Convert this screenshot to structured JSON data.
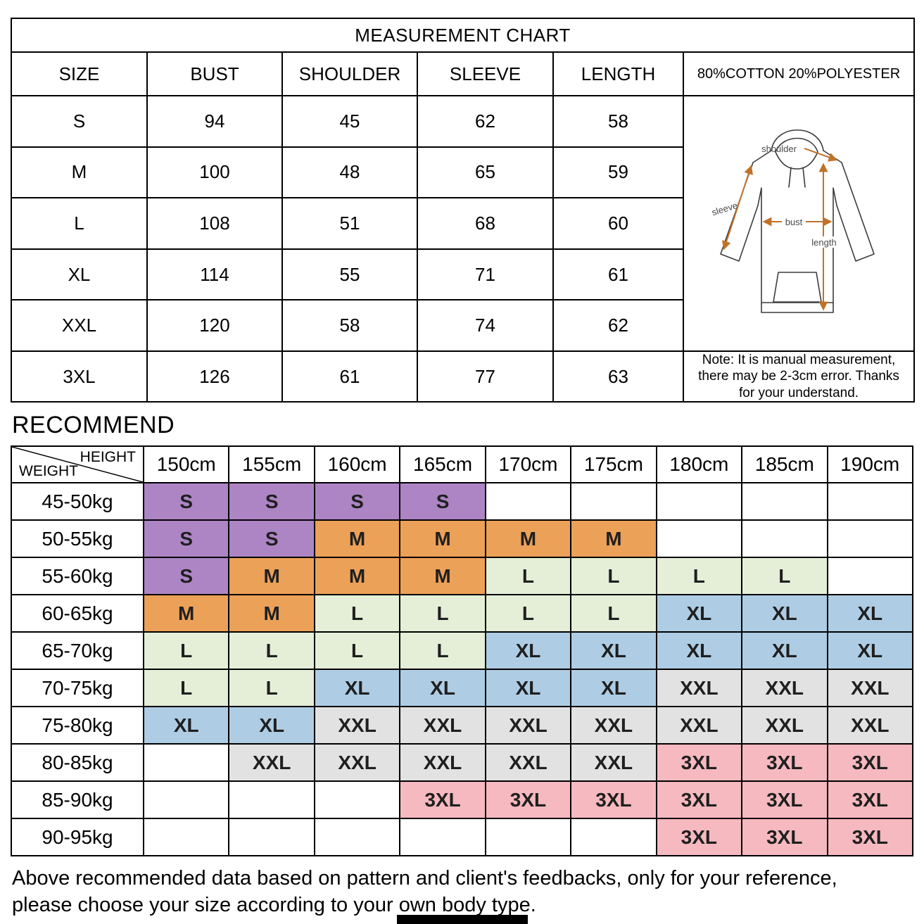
{
  "measurement_chart": {
    "title": "MEASUREMENT CHART",
    "columns": [
      "SIZE",
      "BUST",
      "SHOULDER",
      "SLEEVE",
      "LENGTH"
    ],
    "material": "80%COTTON 20%POLYESTER",
    "rows": [
      {
        "size": "S",
        "bust": "94",
        "shoulder": "45",
        "sleeve": "62",
        "length": "58"
      },
      {
        "size": "M",
        "bust": "100",
        "shoulder": "48",
        "sleeve": "65",
        "length": "59"
      },
      {
        "size": "L",
        "bust": "108",
        "shoulder": "51",
        "sleeve": "68",
        "length": "60"
      },
      {
        "size": "XL",
        "bust": "114",
        "shoulder": "55",
        "sleeve": "71",
        "length": "61"
      },
      {
        "size": "XXL",
        "bust": "120",
        "shoulder": "58",
        "sleeve": "74",
        "length": "62"
      },
      {
        "size": "3XL",
        "bust": "126",
        "shoulder": "61",
        "sleeve": "77",
        "length": "63"
      }
    ],
    "diagram_labels": {
      "shoulder": "shoulder",
      "sleeve": "sleeve",
      "bust": "bust",
      "length": "length"
    },
    "note_lines": [
      "Note: It is manual measurement,",
      "there may be 2-3cm error. Thanks",
      "for your understand."
    ]
  },
  "recommend": {
    "heading": "RECOMMEND",
    "corner_top": "HEIGHT",
    "corner_bottom": "WEIGHT",
    "heights": [
      "150cm",
      "155cm",
      "160cm",
      "165cm",
      "170cm",
      "175cm",
      "180cm",
      "185cm",
      "190cm"
    ],
    "rows": [
      {
        "weight": "45-50kg",
        "sizes": [
          "S",
          "S",
          "S",
          "S",
          "",
          "",
          "",
          "",
          ""
        ]
      },
      {
        "weight": "50-55kg",
        "sizes": [
          "S",
          "S",
          "M",
          "M",
          "M",
          "M",
          "",
          "",
          ""
        ]
      },
      {
        "weight": "55-60kg",
        "sizes": [
          "S",
          "M",
          "M",
          "M",
          "L",
          "L",
          "L",
          "L",
          ""
        ]
      },
      {
        "weight": "60-65kg",
        "sizes": [
          "M",
          "M",
          "L",
          "L",
          "L",
          "L",
          "XL",
          "XL",
          "XL"
        ]
      },
      {
        "weight": "65-70kg",
        "sizes": [
          "L",
          "L",
          "L",
          "L",
          "XL",
          "XL",
          "XL",
          "XL",
          "XL"
        ]
      },
      {
        "weight": "70-75kg",
        "sizes": [
          "L",
          "L",
          "XL",
          "XL",
          "XL",
          "XL",
          "XXL",
          "XXL",
          "XXL"
        ]
      },
      {
        "weight": "75-80kg",
        "sizes": [
          "XL",
          "XL",
          "XXL",
          "XXL",
          "XXL",
          "XXL",
          "XXL",
          "XXL",
          "XXL"
        ]
      },
      {
        "weight": "80-85kg",
        "sizes": [
          "",
          "XXL",
          "XXL",
          "XXL",
          "XXL",
          "XXL",
          "3XL",
          "3XL",
          "3XL"
        ]
      },
      {
        "weight": "85-90kg",
        "sizes": [
          "",
          "",
          "",
          "3XL",
          "3XL",
          "3XL",
          "3XL",
          "3XL",
          "3XL"
        ]
      },
      {
        "weight": "90-95kg",
        "sizes": [
          "",
          "",
          "",
          "",
          "",
          "",
          "3XL",
          "3XL",
          "3XL"
        ]
      }
    ],
    "size_colors": {
      "S": "#ad85c4",
      "M": "#eba158",
      "L": "#e5efd8",
      "XL": "#aecde4",
      "XXL": "#e2e2e2",
      "3XL": "#f6b9c0"
    }
  },
  "footer": {
    "line1": "Above recommended data based on pattern and client's feedbacks, only for your reference,",
    "line2": "please choose your size according to your own body type."
  }
}
